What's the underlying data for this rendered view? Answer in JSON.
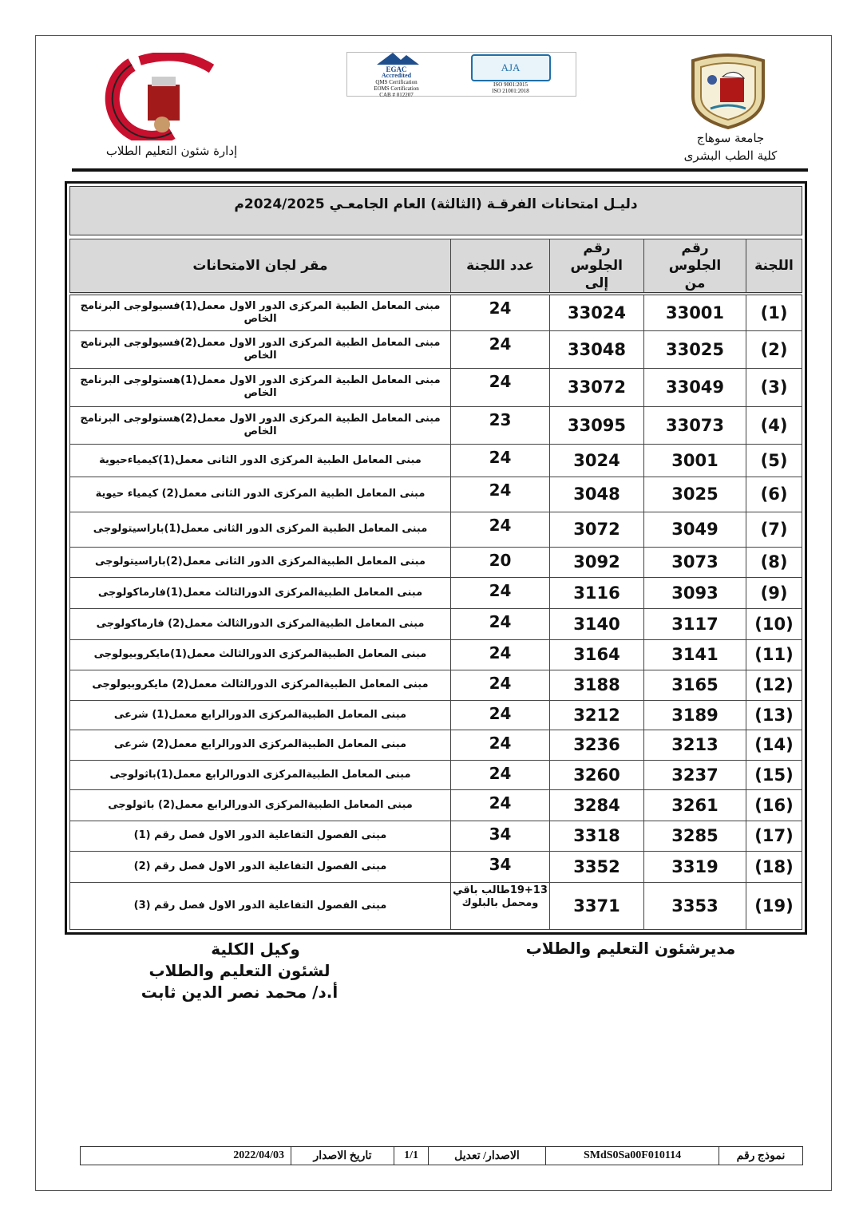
{
  "header": {
    "college_logo_text": "جامعة سوهاج كلية الطب",
    "department": "إدارة شئون التعليم الطلاب",
    "cert_left": [
      "EGAC",
      "Accredited",
      "QMS Certification",
      "EOMS Certification",
      "CAB # 012207"
    ],
    "cert_right": [
      "AJA",
      "ISO 9001:2015",
      "ISO 21001:2018"
    ],
    "university": "جامعة سوهاج",
    "faculty": "كلية الطب البشرى"
  },
  "table": {
    "title": "دليـل امتحانات الفرقـة (الثالثة) العام الجامعـي 2024/2025م",
    "columns": {
      "committee": "اللجنة",
      "from": "رقم الجلوس من",
      "to": "رقم الجلوس إلى",
      "count": "عدد اللجنة",
      "location": "مقر لجان الامتحانات"
    },
    "rows": [
      {
        "committee": "(1)",
        "from": "33001",
        "to": "33024",
        "count": "24",
        "location": "مبنى المعامل الطبية المركزى الدور الاول معمل(1)فسيولوجى البرنامج الخاص"
      },
      {
        "committee": "(2)",
        "from": "33025",
        "to": "33048",
        "count": "24",
        "location": "مبنى المعامل الطبية المركزى الدور الاول معمل(2)فسيولوجى البرنامج الخاص"
      },
      {
        "committee": "(3)",
        "from": "33049",
        "to": "33072",
        "count": "24",
        "location": "مبنى المعامل الطبية المركزى الدور الاول معمل(1)هستولوجى البرنامج الخاص"
      },
      {
        "committee": "(4)",
        "from": "33073",
        "to": "33095",
        "count": "23",
        "location": "مبنى المعامل الطبية المركزى الدور الاول معمل(2)هستولوجى البرنامج الخاص"
      },
      {
        "committee": "(5)",
        "from": "3001",
        "to": "3024",
        "count": "24",
        "location": "مبنى المعامل الطبية المركزى الدور الثانى معمل(1)كيمياءحيوية"
      },
      {
        "committee": "(6)",
        "from": "3025",
        "to": "3048",
        "count": "24",
        "location": "مبنى المعامل الطبية المركزى الدور الثانى معمل(2) كيمياء حيوية"
      },
      {
        "committee": "(7)",
        "from": "3049",
        "to": "3072",
        "count": "24",
        "location": "مبنى المعامل الطبية المركزى الدور الثانى معمل(1)باراسيتولوجى"
      },
      {
        "committee": "(8)",
        "from": "3073",
        "to": "3092",
        "count": "20",
        "location": "مبنى المعامل الطبيةالمركزى الدور الثانى معمل(2)باراسيتولوجى"
      },
      {
        "committee": "(9)",
        "from": "3093",
        "to": "3116",
        "count": "24",
        "location": "مبنى المعامل الطبيةالمركزى الدورالثالث معمل(1)فارماكولوجى"
      },
      {
        "committee": "(10)",
        "from": "3117",
        "to": "3140",
        "count": "24",
        "location": "مبنى المعامل الطبيةالمركزى الدورالثالث معمل(2) فارماكولوجى"
      },
      {
        "committee": "(11)",
        "from": "3141",
        "to": "3164",
        "count": "24",
        "location": "مبنى المعامل الطبيةالمركزى الدورالثالث معمل(1)مايكروبيولوجى"
      },
      {
        "committee": "(12)",
        "from": "3165",
        "to": "3188",
        "count": "24",
        "location": "مبنى المعامل الطبيةالمركزى الدورالثالث معمل(2) مايكروبيولوجى"
      },
      {
        "committee": "(13)",
        "from": "3189",
        "to": "3212",
        "count": "24",
        "location": "مبنى المعامل الطبيةالمركزى الدورالرابع معمل(1) شرعى"
      },
      {
        "committee": "(14)",
        "from": "3213",
        "to": "3236",
        "count": "24",
        "location": "مبنى المعامل الطبيةالمركزى الدورالرابع معمل(2) شرعى"
      },
      {
        "committee": "(15)",
        "from": "3237",
        "to": "3260",
        "count": "24",
        "location": "مبنى المعامل الطبيةالمركزى الدورالرابع معمل(1)باثولوجى"
      },
      {
        "committee": "(16)",
        "from": "3261",
        "to": "3284",
        "count": "24",
        "location": "مبنى المعامل الطبيةالمركزى الدورالرابع معمل(2) باثولوجى"
      },
      {
        "committee": "(17)",
        "from": "3285",
        "to": "3318",
        "count": "34",
        "location": "مبنى الفصول التفاعلية الدور الاول فصل رقم (1)"
      },
      {
        "committee": "(18)",
        "from": "3319",
        "to": "3352",
        "count": "34",
        "location": "مبنى الفصول التفاعلية الدور الاول فصل رقم (2)"
      },
      {
        "committee": "(19)",
        "from": "3353",
        "to": "3371",
        "count": "19+13طالب باقي ومحمل بالبلوك",
        "location": "مبنى الفصول التفاعلية الدور الاول فصل رقم (3)"
      }
    ]
  },
  "signatures": {
    "left": [
      "وكيل الكلية",
      "لشئون التعليم والطلاب",
      "أ.د/ محمد نصر الدين ثابت"
    ],
    "right": "مديرشئون التعليم والطلاب"
  },
  "footer": {
    "form_no_label": "نموذج رقم",
    "form_no": "SMdS0Sa00F010114",
    "version_label": "الاصدار/ تعديل",
    "version": "1/1",
    "date_label": "تاريخ الاصدار",
    "date": "2022/04/03"
  }
}
